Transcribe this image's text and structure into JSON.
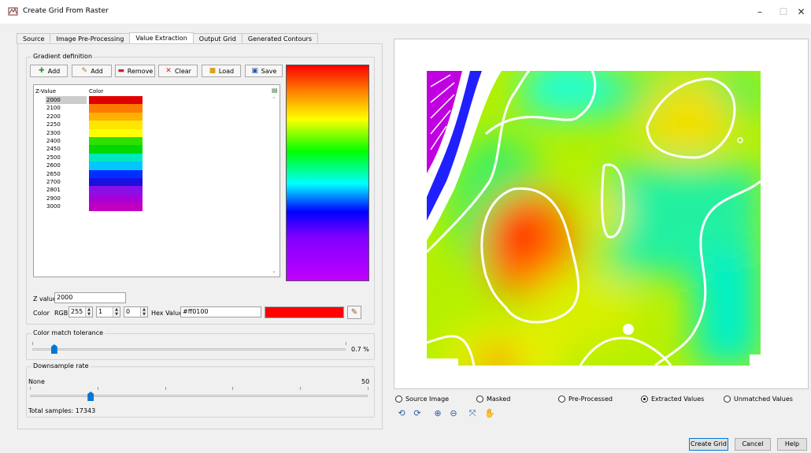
{
  "window": {
    "title": "Create Grid From Raster",
    "controls": [
      "–",
      "☐",
      "✕"
    ]
  },
  "tabs": [
    {
      "label": "Source",
      "active": false
    },
    {
      "label": "Image Pre-Processing",
      "active": false
    },
    {
      "label": "Value Extraction",
      "active": true
    },
    {
      "label": "Output Grid",
      "active": false
    },
    {
      "label": "Generated Contours",
      "active": false
    }
  ],
  "gradient": {
    "group_label": "Gradient definition",
    "toolbar": {
      "add_label": "Add",
      "add2_label": "Add",
      "remove_label": "Remove",
      "clear_label": "Clear",
      "load_label": "Load",
      "save_label": "Save"
    },
    "table": {
      "col_z": "Z-Value",
      "col_color": "Color",
      "rows": [
        {
          "z": "2000",
          "color": "#e00000"
        },
        {
          "z": "2100",
          "color": "#ff7a00"
        },
        {
          "z": "2200",
          "color": "#ffb000"
        },
        {
          "z": "2250",
          "color": "#ffe600"
        },
        {
          "z": "2300",
          "color": "#ffff00"
        },
        {
          "z": "2400",
          "color": "#2ee000"
        },
        {
          "z": "2450",
          "color": "#00d800"
        },
        {
          "z": "2500",
          "color": "#00e8c0"
        },
        {
          "z": "2600",
          "color": "#00c8ff"
        },
        {
          "z": "2650",
          "color": "#0030ff"
        },
        {
          "z": "2700",
          "color": "#1a10e0"
        },
        {
          "z": "2801",
          "color": "#8a10e8"
        },
        {
          "z": "2900",
          "color": "#a800d8"
        },
        {
          "z": "3000",
          "color": "#c000c0"
        }
      ]
    }
  },
  "editor": {
    "z_label": "Z value",
    "z_value": "2000",
    "color_label": "Color",
    "rgb_label": "RGB",
    "r": "255",
    "g": "1",
    "b": "0",
    "hex_label": "Hex Value",
    "hex_value": "#ff0100",
    "preview_color": "#ff0100"
  },
  "tolerance": {
    "group_label": "Color match tolerance",
    "value_text": "0.7 %",
    "fraction": 0.07
  },
  "downsample": {
    "group_label": "Downsample rate",
    "min_label": "None",
    "max_label": "50",
    "value": 9,
    "total_label": "Total samples: 17343"
  },
  "view_options": [
    {
      "label": "Source Image",
      "checked": false
    },
    {
      "label": "Masked",
      "checked": false
    },
    {
      "label": "Pre-Processed",
      "checked": false
    },
    {
      "label": "Extracted Values",
      "checked": true
    },
    {
      "label": "Unmatched Values",
      "checked": false
    }
  ],
  "view_tools": [
    "zoom-previous-icon",
    "zoom-next-icon",
    "zoom-in-icon",
    "zoom-out-icon",
    "zoom-extent-icon",
    "pan-hand-icon"
  ],
  "footer": {
    "create_label": "Create Grid",
    "cancel_label": "Cancel",
    "help_label": "Help"
  }
}
